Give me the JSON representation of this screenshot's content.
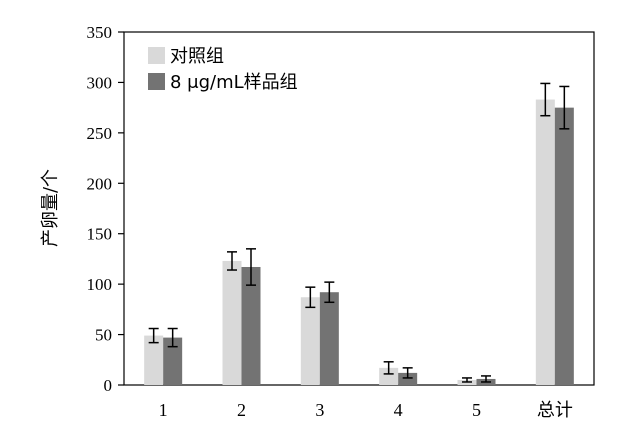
{
  "chart_data": {
    "type": "bar",
    "ylabel": "产卵量/个",
    "xlabel": "",
    "title": "",
    "ylim": [
      0,
      350
    ],
    "yticks": [
      0,
      50,
      100,
      150,
      200,
      250,
      300,
      350
    ],
    "categories": [
      "1",
      "2",
      "3",
      "4",
      "5",
      "总计"
    ],
    "series": [
      {
        "name": "对照组",
        "color": "#d9d9d9",
        "values": [
          49,
          123,
          87,
          17,
          5,
          283
        ],
        "errors": [
          7,
          9,
          10,
          6,
          2,
          16
        ]
      },
      {
        "name": "8 μg/mL样品组",
        "color": "#737373",
        "values": [
          47,
          117,
          92,
          12,
          6,
          275
        ],
        "errors": [
          9,
          18,
          10,
          5,
          3,
          21
        ]
      }
    ],
    "legend_position": "top-left",
    "grid": false,
    "error_bars": true
  }
}
